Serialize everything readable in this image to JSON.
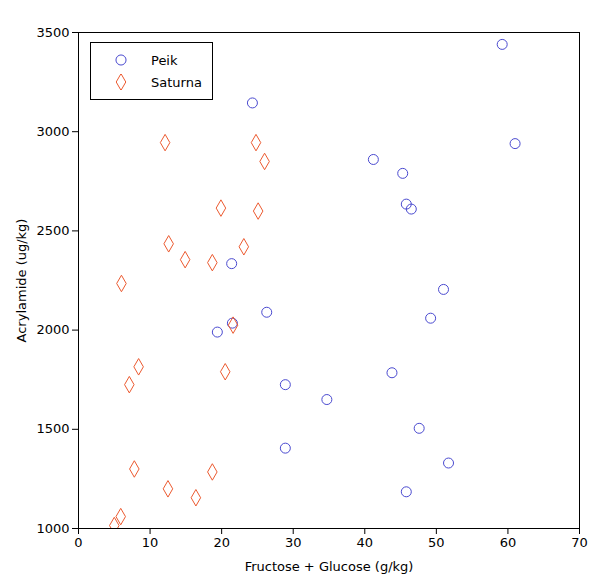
{
  "chart_data": {
    "type": "scatter",
    "x_label": "Fructose + Glucose (g/kg)",
    "y_label": "Acrylamide (ug/kg)",
    "xlim": [
      0,
      70
    ],
    "xticks": [
      0,
      10,
      20,
      30,
      40,
      50,
      60,
      70
    ],
    "ylim": [
      1000,
      3500
    ],
    "yticks": [
      1000,
      1500,
      2000,
      2500,
      3000,
      3500
    ],
    "legend": "upper left",
    "series": [
      {
        "name": "Peik",
        "color": "#4a4ad0",
        "marker": "circle",
        "x": [
          59.2,
          61.0,
          24.3,
          41.2,
          45.3,
          45.8,
          46.5,
          21.4,
          51.0,
          26.3,
          49.2,
          21.5,
          19.4,
          28.9,
          43.8,
          34.7,
          47.6,
          28.9,
          51.7,
          45.8
        ],
        "values": [
          3440,
          2940,
          3145,
          2860,
          2790,
          2635,
          2610,
          2335,
          2205,
          2090,
          2060,
          2035,
          1990,
          1725,
          1785,
          1650,
          1505,
          1405,
          1330,
          1185
        ]
      },
      {
        "name": "Saturna",
        "color": "#ec5a30",
        "marker": "diamond",
        "x": [
          12.1,
          24.8,
          26.0,
          19.9,
          25.1,
          12.6,
          23.1,
          14.9,
          18.7,
          6.0,
          21.6,
          8.4,
          20.5,
          7.1,
          7.8,
          18.7,
          12.5,
          16.4,
          5.9,
          5.0
        ],
        "values": [
          2945,
          2945,
          2850,
          2615,
          2600,
          2435,
          2420,
          2355,
          2340,
          2235,
          2025,
          1815,
          1790,
          1725,
          1300,
          1285,
          1200,
          1155,
          1060,
          1015
        ]
      }
    ]
  }
}
